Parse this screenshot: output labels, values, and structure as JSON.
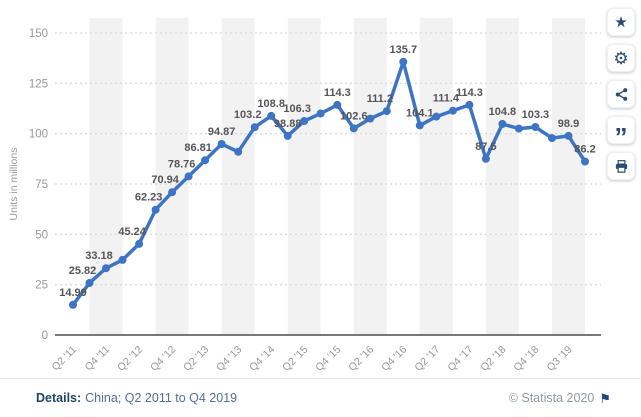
{
  "chart_data": {
    "type": "line",
    "title": "",
    "xlabel": "",
    "ylabel": "Units in millions",
    "ylim": [
      0,
      150
    ],
    "yticks": [
      0,
      25,
      50,
      75,
      100,
      125,
      150
    ],
    "grid": "horizontal-dotted",
    "legend": "none",
    "line_color": "#3d74c4",
    "band_color": "#f2f2f2",
    "x_tick_labels": [
      "Q2 '11",
      "Q4 '11",
      "Q2 '12",
      "Q4 '12",
      "Q2 '13",
      "Q4 '13",
      "Q4 '14",
      "Q2 '15",
      "Q4 '15",
      "Q2 '16",
      "Q4 '16",
      "Q2 '17",
      "Q4 '17",
      "Q2 '18",
      "Q4 '18",
      "Q3 '19"
    ],
    "points": [
      {
        "value": 14.99,
        "label": "14.99"
      },
      {
        "value": 25.82,
        "label": "25.82"
      },
      {
        "value": 33.18,
        "label": "33.18"
      },
      {
        "value": 37.3,
        "label": ""
      },
      {
        "value": 45.24,
        "label": "45.24"
      },
      {
        "value": 62.23,
        "label": "62.23"
      },
      {
        "value": 70.94,
        "label": "70.94"
      },
      {
        "value": 78.76,
        "label": "78.76"
      },
      {
        "value": 86.81,
        "label": "86.81"
      },
      {
        "value": 94.87,
        "label": "94.87"
      },
      {
        "value": 91.0,
        "label": ""
      },
      {
        "value": 103.2,
        "label": "103.2"
      },
      {
        "value": 108.8,
        "label": "108.8"
      },
      {
        "value": 98.88,
        "label": "98.88"
      },
      {
        "value": 106.3,
        "label": "106.3"
      },
      {
        "value": 110.0,
        "label": ""
      },
      {
        "value": 114.3,
        "label": "114.3"
      },
      {
        "value": 102.6,
        "label": "102.6"
      },
      {
        "value": 107.5,
        "label": ""
      },
      {
        "value": 111.2,
        "label": "111.2"
      },
      {
        "value": 135.7,
        "label": "135.7"
      },
      {
        "value": 104.1,
        "label": "104.1"
      },
      {
        "value": 108.5,
        "label": ""
      },
      {
        "value": 111.4,
        "label": "111.4"
      },
      {
        "value": 114.3,
        "label": "114.3"
      },
      {
        "value": 87.5,
        "label": "87.5"
      },
      {
        "value": 104.8,
        "label": "104.8"
      },
      {
        "value": 102.5,
        "label": ""
      },
      {
        "value": 103.3,
        "label": "103.3"
      },
      {
        "value": 97.8,
        "label": ""
      },
      {
        "value": 98.9,
        "label": "98.9"
      },
      {
        "value": 86.2,
        "label": "86.2"
      }
    ],
    "colors": {
      "value_label": "#54555a",
      "tick_label": "#989898",
      "axis_line": "#4d4d4d",
      "gridline": "#cfcfcf"
    }
  },
  "action_bar": {
    "buttons": [
      {
        "id": "favorite",
        "icon": "star-icon",
        "glyph": "★"
      },
      {
        "id": "settings",
        "icon": "gear-icon",
        "glyph": "⚙"
      },
      {
        "id": "share",
        "icon": "share-icon",
        "glyph": ""
      },
      {
        "id": "cite",
        "icon": "quote-icon",
        "glyph": "”"
      },
      {
        "id": "print",
        "icon": "print-icon",
        "glyph": ""
      }
    ]
  },
  "footer": {
    "details_label": "Details:",
    "details_value": "China; Q2 2011 to Q4 2019",
    "copyright": "© Statista 2020",
    "flag_glyph": "⚑"
  }
}
